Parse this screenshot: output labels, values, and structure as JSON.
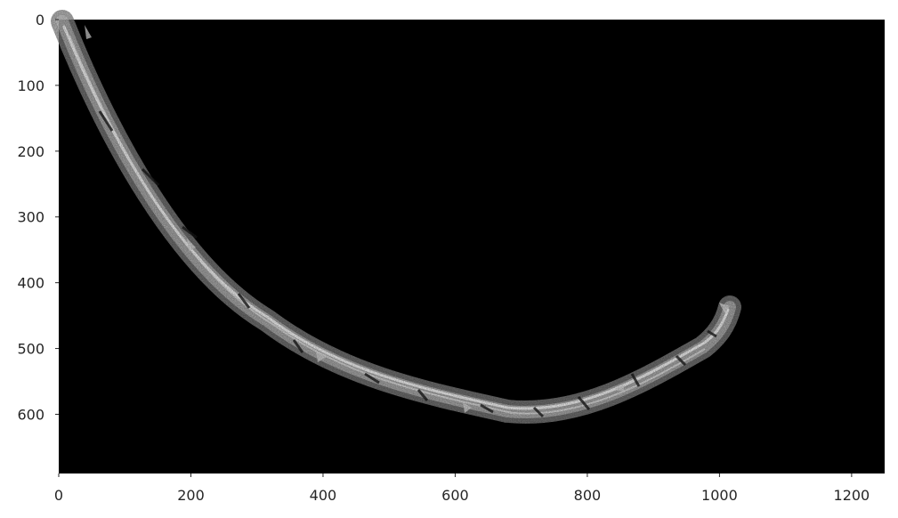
{
  "figure": {
    "background_color": "#ffffff",
    "image_background_color": "#000000",
    "image_description_colors": [
      "#bdbdbd",
      "#8a8a8a",
      "#efefef"
    ]
  },
  "axes": {
    "x": {
      "range": [
        0,
        1250
      ],
      "ticks": [
        0,
        200,
        400,
        600,
        800,
        1000,
        1200
      ]
    },
    "y": {
      "range": [
        690,
        0
      ],
      "ticks": [
        0,
        100,
        200,
        300,
        400,
        500,
        600
      ],
      "inverted": true
    },
    "grid": false
  }
}
